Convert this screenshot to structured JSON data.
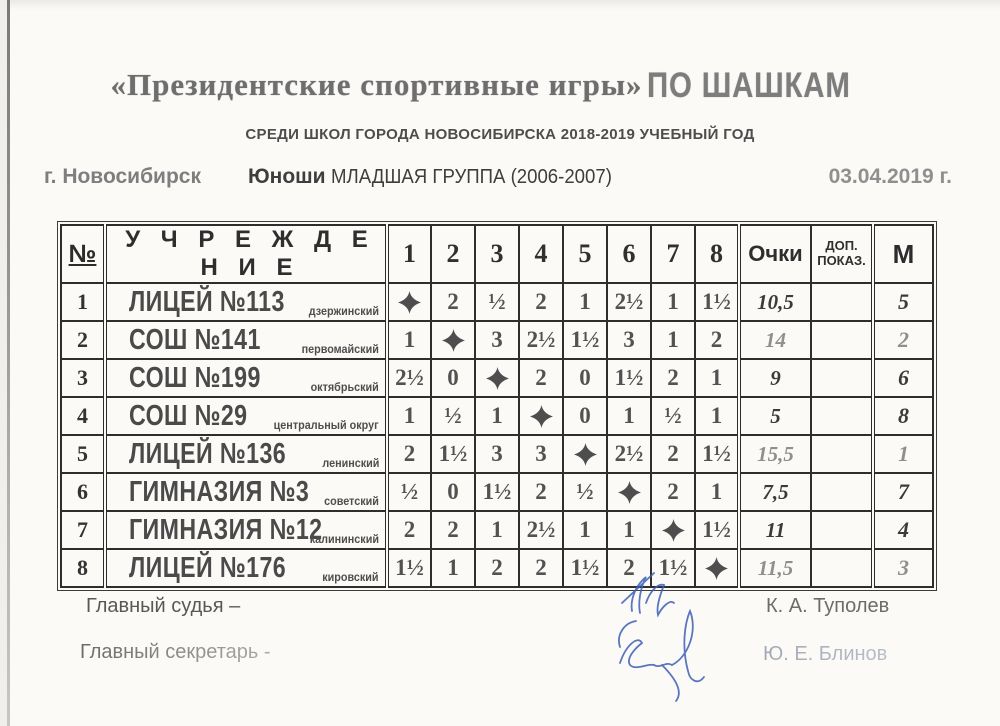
{
  "page": {
    "title_serif": "«Президентские спортивные игры»",
    "title_caps": "ПО ШАШКАМ",
    "subtitle": "СРЕДИ ШКОЛ  ГОРОДА НОВОСИБИРСКА 2018-2019 УЧЕБНЫЙ ГОД",
    "city": "г. Новосибирск",
    "group_bold": "Юноши",
    "group_rest": "МЛАДШАЯ  ГРУППА (2006-2007)",
    "date": "03.04.2019 г."
  },
  "table": {
    "headers": {
      "num": "№",
      "institution": "У Ч Р Е Ж Д Е Н И Е",
      "rounds": [
        "1",
        "2",
        "3",
        "4",
        "5",
        "6",
        "7",
        "8"
      ],
      "points": "Очки",
      "extra_line1": "ДОП.",
      "extra_line2": "ПОКАЗ.",
      "place": "М"
    },
    "self_symbol": "*",
    "rows": [
      {
        "num": "1",
        "name": "ЛИЦЕЙ №113",
        "district": "дзержинский",
        "results": [
          "*",
          "2",
          "½",
          "2",
          "1",
          "2½",
          "1",
          "1½"
        ],
        "points": "10,5",
        "extra": "",
        "place": "5"
      },
      {
        "num": "2",
        "name": "СОШ №141",
        "district": "первомайский",
        "results": [
          "1",
          "*",
          "3",
          "2½",
          "1½",
          "3",
          "1",
          "2"
        ],
        "points": "14",
        "extra": "",
        "place": "2"
      },
      {
        "num": "3",
        "name": "СОШ №199",
        "district": "октябрьский",
        "results": [
          "2½",
          "0",
          "*",
          "2",
          "0",
          "1½",
          "2",
          "1"
        ],
        "points": "9",
        "extra": "",
        "place": "6"
      },
      {
        "num": "4",
        "name": "СОШ №29",
        "district": "центральный округ",
        "results": [
          "1",
          "½",
          "1",
          "*",
          "0",
          "1",
          "½",
          "1"
        ],
        "points": "5",
        "extra": "",
        "place": "8"
      },
      {
        "num": "5",
        "name": "ЛИЦЕЙ №136",
        "district": "ленинский",
        "results": [
          "2",
          "1½",
          "3",
          "3",
          "*",
          "2½",
          "2",
          "1½"
        ],
        "points": "15,5",
        "extra": "",
        "place": "1"
      },
      {
        "num": "6",
        "name": "ГИМНАЗИЯ №3",
        "district": "советский",
        "results": [
          "½",
          "0",
          "1½",
          "2",
          "½",
          "*",
          "2",
          "1"
        ],
        "points": "7,5",
        "extra": "",
        "place": "7"
      },
      {
        "num": "7",
        "name": "ГИМНАЗИЯ №12",
        "district": "калининский",
        "results": [
          "2",
          "2",
          "1",
          "2½",
          "1",
          "1",
          "*",
          "1½"
        ],
        "points": "11",
        "extra": "",
        "place": "4"
      },
      {
        "num": "8",
        "name": "ЛИЦЕЙ №176",
        "district": "кировский",
        "results": [
          "1½",
          "1",
          "2",
          "2",
          "1½",
          "2",
          "1½",
          "*"
        ],
        "points": "11,5",
        "extra": "",
        "place": "3"
      }
    ]
  },
  "footer": {
    "judge_label": "Главный судья –",
    "judge_name": "К. А. Туполев",
    "secretary_label": "Главный секретарь -",
    "secretary_name": "Ю. Е. Блинов"
  },
  "colors": {
    "ink_blue": "#3d5fb5",
    "table_border": "#2c2c2c",
    "paper": "#fbfaf7"
  }
}
